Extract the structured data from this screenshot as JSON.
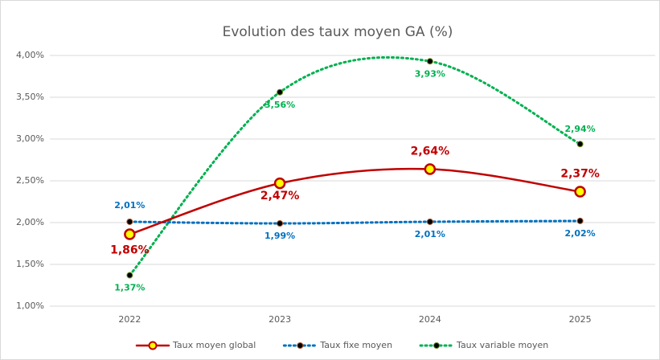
{
  "chart_data": {
    "type": "line",
    "title": "Evolution des taux moyen GA (%)",
    "categories": [
      "2022",
      "2023",
      "2024",
      "2025"
    ],
    "series": [
      {
        "name": "Taux moyen global",
        "color": "#c00000",
        "values": [
          1.86,
          2.47,
          2.64,
          2.37
        ],
        "value_labels": [
          "1,86%",
          "2,47%",
          "2,64%",
          "2,37%"
        ]
      },
      {
        "name": "Taux fixe moyen",
        "color": "#0070c0",
        "values": [
          2.01,
          1.99,
          2.01,
          2.02
        ],
        "value_labels": [
          "2,01%",
          "1,99%",
          "2,01%",
          "2,02%"
        ]
      },
      {
        "name": "Taux variable moyen",
        "color": "#00b050",
        "values": [
          1.37,
          3.56,
          3.93,
          2.94
        ],
        "value_labels": [
          "1,37%",
          "3,56%",
          "3,93%",
          "2,94%"
        ]
      }
    ],
    "ylim": [
      1,
      4
    ],
    "yticks": [
      {
        "value": 1,
        "label": "1,00%"
      },
      {
        "value": 1.5,
        "label": "1,50%"
      },
      {
        "value": 2,
        "label": "2,00%"
      },
      {
        "value": 2.5,
        "label": "2,50%"
      },
      {
        "value": 3,
        "label": "3,00%"
      },
      {
        "value": 3.5,
        "label": "3,50%"
      },
      {
        "value": 4,
        "label": "4,00%"
      }
    ],
    "grid": true,
    "legend": "bottom"
  }
}
